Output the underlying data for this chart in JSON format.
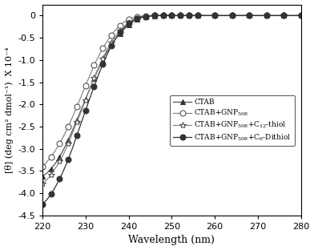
{
  "xlim": [
    220,
    280
  ],
  "ylim": [
    -4.5,
    0.25
  ],
  "xlabel": "Wavelength (nm)",
  "ylabel": "[θ] (deg cm² dmol⁻¹)  X 10⁻⁴",
  "series": {
    "CTAB": {
      "color": "#555555",
      "marker": "^",
      "markersize": 5,
      "markerfacecolor": "#333333",
      "markeredgecolor": "#333333",
      "linestyle": "-",
      "label": "CTAB",
      "x": [
        220,
        221,
        222,
        223,
        224,
        225,
        226,
        227,
        228,
        229,
        230,
        231,
        232,
        233,
        234,
        235,
        236,
        237,
        238,
        239,
        240,
        241,
        242,
        243,
        244,
        245,
        246,
        247,
        248,
        249,
        250,
        251,
        252,
        253,
        254,
        255,
        256,
        258,
        260,
        262,
        264,
        266,
        268,
        270,
        272,
        274,
        276,
        278,
        280
      ],
      "y": [
        -3.62,
        -3.55,
        -3.45,
        -3.33,
        -3.18,
        -3.0,
        -2.8,
        -2.58,
        -2.35,
        -2.12,
        -1.88,
        -1.65,
        -1.42,
        -1.2,
        -1.0,
        -0.82,
        -0.66,
        -0.52,
        -0.4,
        -0.3,
        -0.21,
        -0.14,
        -0.09,
        -0.05,
        -0.03,
        -0.01,
        -0.01,
        0.0,
        0.0,
        0.0,
        0.0,
        0.0,
        0.0,
        0.0,
        0.0,
        0.0,
        0.0,
        0.0,
        0.0,
        0.0,
        0.0,
        0.0,
        0.0,
        0.0,
        0.0,
        0.0,
        0.0,
        0.0,
        0.0
      ]
    },
    "CTAB+GNP": {
      "color": "#888888",
      "marker": "o",
      "markersize": 5,
      "markerfacecolor": "white",
      "markeredgecolor": "#555555",
      "linestyle": "-",
      "label": "CTAB+GNP$_{508}$",
      "x": [
        220,
        221,
        222,
        223,
        224,
        225,
        226,
        227,
        228,
        229,
        230,
        231,
        232,
        233,
        234,
        235,
        236,
        237,
        238,
        239,
        240,
        241,
        242,
        243,
        244,
        245,
        246,
        247,
        248,
        249,
        250,
        251,
        252,
        253,
        254,
        255,
        256,
        258,
        260,
        262,
        264,
        266,
        268,
        270,
        272,
        274,
        276,
        278,
        280
      ],
      "y": [
        -3.4,
        -3.3,
        -3.18,
        -3.04,
        -2.88,
        -2.7,
        -2.5,
        -2.28,
        -2.05,
        -1.82,
        -1.58,
        -1.35,
        -1.12,
        -0.92,
        -0.74,
        -0.58,
        -0.44,
        -0.32,
        -0.22,
        -0.14,
        -0.09,
        -0.05,
        -0.03,
        -0.01,
        -0.01,
        0.0,
        0.0,
        0.0,
        0.0,
        0.0,
        0.0,
        0.0,
        0.0,
        0.0,
        0.0,
        0.0,
        0.0,
        0.0,
        0.0,
        0.0,
        0.0,
        0.0,
        0.0,
        0.0,
        0.0,
        0.0,
        0.0,
        0.0,
        0.0
      ]
    },
    "CTAB+GNP+C12thiol": {
      "color": "#888888",
      "marker": "*",
      "markersize": 6,
      "markerfacecolor": "white",
      "markeredgecolor": "#555555",
      "linestyle": "-",
      "label": "CTAB+GNP$_{508}$+C$_{12}$-thiol",
      "x": [
        220,
        221,
        222,
        223,
        224,
        225,
        226,
        227,
        228,
        229,
        230,
        231,
        232,
        233,
        234,
        235,
        236,
        237,
        238,
        239,
        240,
        241,
        242,
        243,
        244,
        245,
        246,
        247,
        248,
        249,
        250,
        251,
        252,
        253,
        254,
        255,
        256,
        258,
        260,
        262,
        264,
        266,
        268,
        270,
        272,
        274,
        276,
        278,
        280
      ],
      "y": [
        -3.78,
        -3.7,
        -3.58,
        -3.44,
        -3.28,
        -3.1,
        -2.88,
        -2.64,
        -2.4,
        -2.16,
        -1.9,
        -1.65,
        -1.4,
        -1.17,
        -0.96,
        -0.77,
        -0.6,
        -0.46,
        -0.34,
        -0.24,
        -0.16,
        -0.1,
        -0.06,
        -0.03,
        -0.02,
        -0.01,
        0.0,
        0.0,
        0.0,
        0.0,
        0.0,
        0.0,
        0.0,
        0.0,
        0.0,
        0.0,
        0.0,
        0.0,
        0.0,
        0.0,
        0.0,
        0.0,
        0.0,
        0.0,
        0.0,
        0.0,
        0.0,
        0.0,
        0.0
      ]
    },
    "CTAB+GNP+C6dithiol": {
      "color": "#333333",
      "marker": "o",
      "markersize": 5,
      "markerfacecolor": "#333333",
      "markeredgecolor": "#333333",
      "linestyle": "-",
      "label": "CTAB+GNP$_{508}$+C$_{6}$-Dithiol",
      "x": [
        220,
        221,
        222,
        223,
        224,
        225,
        226,
        227,
        228,
        229,
        230,
        231,
        232,
        233,
        234,
        235,
        236,
        237,
        238,
        239,
        240,
        241,
        242,
        243,
        244,
        245,
        246,
        247,
        248,
        249,
        250,
        251,
        252,
        253,
        254,
        255,
        256,
        258,
        260,
        262,
        264,
        266,
        268,
        270,
        272,
        274,
        276,
        278,
        280
      ],
      "y": [
        -4.25,
        -4.15,
        -4.02,
        -3.86,
        -3.68,
        -3.47,
        -3.24,
        -2.98,
        -2.7,
        -2.42,
        -2.14,
        -1.86,
        -1.6,
        -1.34,
        -1.1,
        -0.88,
        -0.68,
        -0.52,
        -0.38,
        -0.27,
        -0.18,
        -0.11,
        -0.06,
        -0.03,
        -0.02,
        -0.01,
        0.0,
        0.0,
        0.0,
        0.0,
        0.0,
        0.0,
        0.0,
        0.0,
        0.0,
        0.0,
        0.0,
        0.0,
        0.0,
        0.0,
        0.0,
        0.0,
        0.0,
        0.0,
        0.0,
        0.0,
        0.0,
        0.0,
        0.0
      ]
    }
  },
  "yticks": [
    0,
    -0.5,
    -1.0,
    -1.5,
    -2.0,
    -2.5,
    -3.0,
    -3.5,
    -4.0,
    -4.5
  ],
  "ytick_labels": [
    "0",
    "-0.5",
    "-1.0",
    "-1.5",
    "-2.0",
    "-2.5",
    "-3.0",
    "-3.5",
    "-4.0",
    "-4.5"
  ],
  "xticks": [
    220,
    230,
    240,
    250,
    260,
    270,
    280
  ],
  "marker_every": 2
}
